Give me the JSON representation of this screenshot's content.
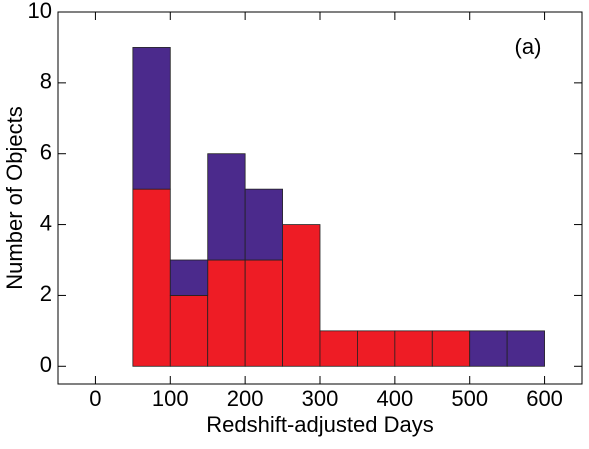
{
  "chart_data": {
    "type": "stacked_histogram",
    "x_label": "Redshift-adjusted Days",
    "y_label": "Number of Objects",
    "annotation": "(a)",
    "bins": [
      50,
      100,
      150,
      200,
      250,
      300,
      350,
      400,
      450,
      500,
      550,
      600
    ],
    "series": [
      {
        "color": "#ee1c25",
        "values": [
          5,
          2,
          3,
          3,
          4,
          1,
          1,
          1,
          1,
          0,
          0
        ]
      },
      {
        "color": "#4b2a8c",
        "values": [
          4,
          1,
          3,
          2,
          0,
          0,
          0,
          0,
          0,
          1,
          1
        ]
      }
    ],
    "xlim": [
      -50,
      650
    ],
    "ylim": [
      -0.5,
      10
    ],
    "xticks": [
      0,
      100,
      200,
      300,
      400,
      500,
      600
    ],
    "yticks": [
      0,
      2,
      4,
      6,
      8,
      10
    ]
  }
}
